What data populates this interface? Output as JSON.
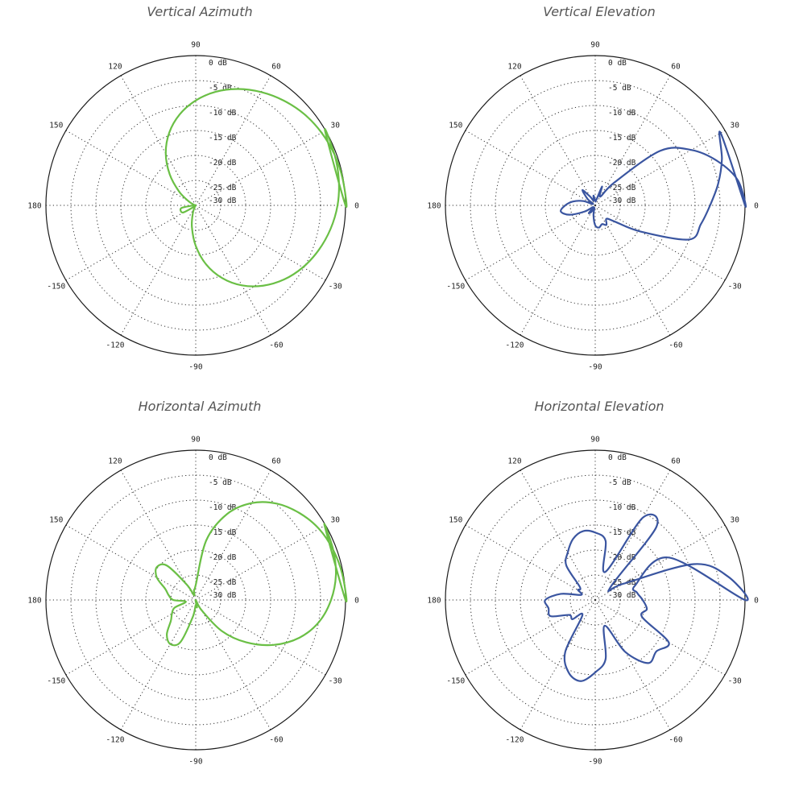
{
  "colors": {
    "background": "#ffffff",
    "grid": "#333333",
    "outer_ring": "#1a1a1a"
  },
  "chart_data": [
    {
      "type": "polar-line",
      "title": "Vertical Azimuth",
      "color": "#6abf45",
      "r_unit": "dB",
      "r_range": [
        -30,
        0
      ],
      "r_ticks": [
        "0 dB",
        "-5 dB",
        "-10 dB",
        "-15 dB",
        "-20 dB",
        "-25 dB",
        "-30 dB"
      ],
      "angle_labels": [
        "0",
        "30",
        "60",
        "90",
        "120",
        "150",
        "180",
        "-150",
        "-120",
        "-90",
        "-60",
        "-30"
      ],
      "angle_unit": "deg",
      "angle_step": 10,
      "r": [
        0.0,
        -0.1,
        -0.4,
        -0.9,
        -1.6,
        -2.6,
        -3.8,
        -5.2,
        -6.9,
        -9.0,
        -11.5,
        -14.5,
        -18.0,
        -21.9,
        -25.6,
        -28.3,
        -29.6,
        -30.0,
        -29.6,
        -27.2,
        -26.8,
        -27.2,
        -29.6,
        -30.0,
        -29.6,
        -28.3,
        -25.6,
        -21.9,
        -18.0,
        -14.5,
        -11.5,
        -9.0,
        -6.9,
        -5.2,
        -3.8,
        -2.6,
        -1.6,
        -0.9,
        -0.4,
        -0.1
      ]
    },
    {
      "type": "polar-line",
      "title": "Vertical Elevation",
      "color": "#3a55a0",
      "r_unit": "dB",
      "r_range": [
        -30,
        0
      ],
      "r_ticks": [
        "0 dB",
        "-5 dB",
        "-10 dB",
        "-15 dB",
        "-20 dB",
        "-25 dB",
        "-30 dB"
      ],
      "angle_labels": [
        "0",
        "30",
        "60",
        "90",
        "120",
        "150",
        "180",
        "-150",
        "-120",
        "-90",
        "-60",
        "-30"
      ],
      "angle_unit": "deg",
      "angle_step": 10,
      "r": [
        0.0,
        -1.0,
        -4.0,
        -7.8,
        -13.0,
        -24.0,
        -28.0,
        -26.0,
        -29.0,
        -29.0,
        -28.0,
        -29.0,
        -28.0,
        -26.0,
        -28.0,
        -29.5,
        -27.5,
        -25.5,
        -24.0,
        -23.0,
        -24.5,
        -27.5,
        -29.5,
        -28.0,
        -28.5,
        -29.5,
        -28.0,
        -26.0,
        -25.5,
        -26.0,
        -25.5,
        -26.5,
        -25.0,
        -19.5,
        -10.0,
        -8.5,
        -7.0,
        -5.0,
        -3.0,
        -1.0
      ]
    },
    {
      "type": "polar-line",
      "title": "Horizontal Azimuth",
      "color": "#6abf45",
      "r_unit": "dB",
      "r_range": [
        -30,
        0
      ],
      "r_ticks": [
        "0 dB",
        "-5 dB",
        "-10 dB",
        "-15 dB",
        "-20 dB",
        "-25 dB",
        "-30 dB"
      ],
      "angle_labels": [
        "0",
        "30",
        "60",
        "90",
        "120",
        "150",
        "180",
        "-150",
        "-120",
        "-90",
        "-60",
        "-30"
      ],
      "angle_unit": "deg",
      "angle_step": 10,
      "r": [
        0.0,
        -0.2,
        -0.7,
        -1.5,
        -2.9,
        -4.8,
        -7.6,
        -11.7,
        -17.9,
        -27.0,
        -28.0,
        -29.0,
        -26.5,
        -21.0,
        -19.8,
        -21.0,
        -23.5,
        -24.5,
        -25.5,
        -28.0,
        -25.5,
        -24.5,
        -23.5,
        -21.0,
        -19.8,
        -21.0,
        -26.5,
        -29.0,
        -28.5,
        -30.0,
        -27.6,
        -21.9,
        -16.8,
        -12.0,
        -7.9,
        -4.9,
        -2.9,
        -1.5,
        -0.7,
        -0.2
      ]
    },
    {
      "type": "polar-line",
      "title": "Horizontal Elevation",
      "color": "#3a55a0",
      "r_unit": "dB",
      "r_range": [
        -30,
        0
      ],
      "r_ticks": [
        "0 dB",
        "-5 dB",
        "-10 dB",
        "-15 dB",
        "-20 dB",
        "-25 dB",
        "-30 dB"
      ],
      "angle_labels": [
        "0",
        "30",
        "60",
        "90",
        "120",
        "150",
        "180",
        "-150",
        "-120",
        "-90",
        "-60",
        "-30"
      ],
      "angle_unit": "deg",
      "angle_step": 10,
      "r": [
        0.0,
        -3.0,
        -9.0,
        -23.5,
        -26.0,
        -11.0,
        -11.0,
        -24.0,
        -18.0,
        -16.5,
        -16.0,
        -17.0,
        -19.0,
        -21.0,
        -26.0,
        -26.0,
        -27.0,
        -23.0,
        -20.0,
        -20.5,
        -20.5,
        -24.0,
        -24.0,
        -26.0,
        -18.0,
        -14.5,
        -13.5,
        -15.5,
        -18.0,
        -24.5,
        -18.0,
        -13.5,
        -14.0,
        -13.0,
        -20.0,
        -19.5,
        -20.5,
        -21.5,
        -21.5,
        -13.0
      ]
    }
  ]
}
